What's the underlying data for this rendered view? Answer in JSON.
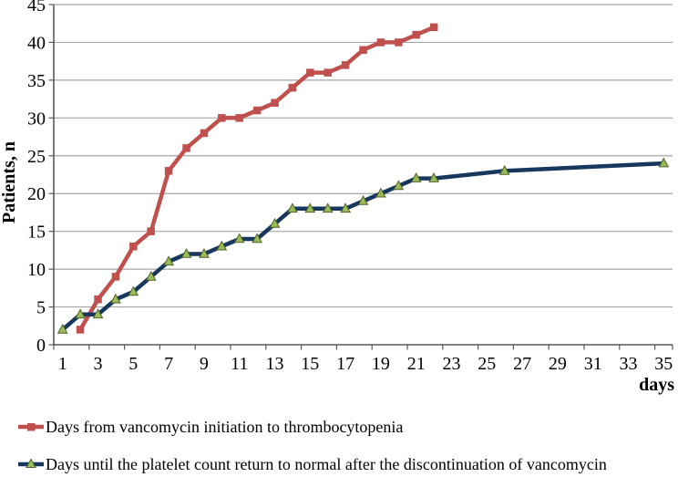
{
  "chart_data": {
    "type": "line",
    "title": "",
    "xlabel": "days",
    "ylabel": "Patients, n",
    "ylim": [
      0,
      45
    ],
    "y_tick_step": 5,
    "xlim": [
      1,
      35
    ],
    "x_tick_labels": [
      1,
      3,
      5,
      7,
      9,
      11,
      13,
      15,
      17,
      19,
      21,
      23,
      25,
      27,
      29,
      31,
      33,
      35
    ],
    "grid": "horizontal-only",
    "legend_position": "below-chart-left",
    "series": [
      {
        "name": "Days from vancomycin initiation to thrombocytopenia",
        "color": "#C0504D",
        "marker": "square",
        "marker_fill": "#C0504D",
        "points": [
          [
            2,
            2
          ],
          [
            3,
            6
          ],
          [
            4,
            9
          ],
          [
            5,
            13
          ],
          [
            6,
            15
          ],
          [
            7,
            23
          ],
          [
            8,
            26
          ],
          [
            9,
            28
          ],
          [
            10,
            30
          ],
          [
            11,
            30
          ],
          [
            12,
            31
          ],
          [
            13,
            32
          ],
          [
            14,
            34
          ],
          [
            15,
            36
          ],
          [
            16,
            36
          ],
          [
            17,
            37
          ],
          [
            18,
            39
          ],
          [
            19,
            40
          ],
          [
            20,
            40
          ],
          [
            21,
            41
          ],
          [
            22,
            42
          ]
        ]
      },
      {
        "name": "Days until the platelet count return to normal after the discontinuation of vancomycin",
        "color": "#17375E",
        "marker": "triangle",
        "marker_fill": "#9BBB59",
        "marker_stroke": "#4F6228",
        "points": [
          [
            1,
            2
          ],
          [
            2,
            4
          ],
          [
            3,
            4
          ],
          [
            4,
            6
          ],
          [
            5,
            7
          ],
          [
            6,
            9
          ],
          [
            7,
            11
          ],
          [
            8,
            12
          ],
          [
            9,
            12
          ],
          [
            10,
            13
          ],
          [
            11,
            14
          ],
          [
            12,
            14
          ],
          [
            13,
            16
          ],
          [
            14,
            18
          ],
          [
            15,
            18
          ],
          [
            16,
            18
          ],
          [
            17,
            18
          ],
          [
            18,
            19
          ],
          [
            19,
            20
          ],
          [
            20,
            21
          ],
          [
            21,
            22
          ],
          [
            22,
            22
          ],
          [
            26,
            23
          ],
          [
            35,
            24
          ]
        ]
      }
    ],
    "colors": {
      "gridline": "#A6A6A6",
      "axis": "#595959",
      "background": "#FFFFFF"
    }
  }
}
